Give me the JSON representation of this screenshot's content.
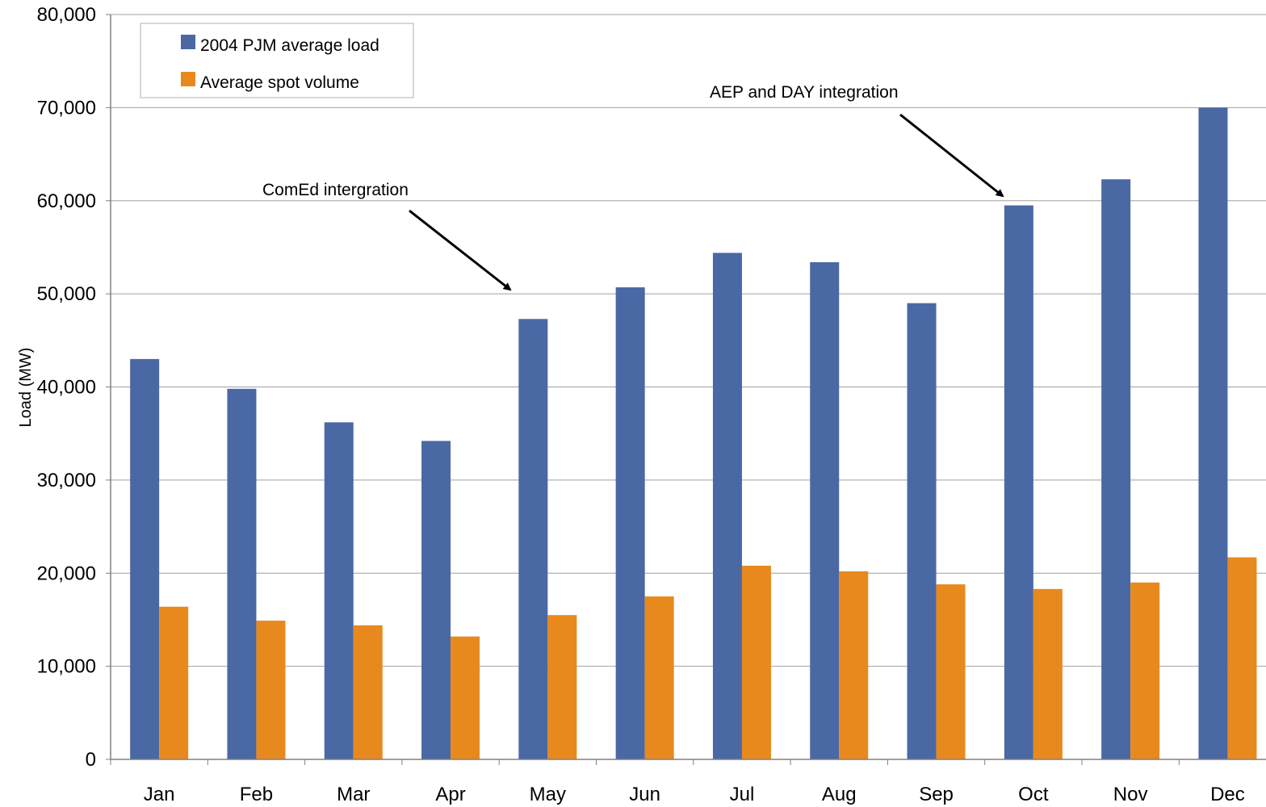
{
  "chart_data": {
    "type": "bar",
    "title": "",
    "xlabel": "",
    "ylabel": "Load (MW)",
    "ylim": [
      0,
      80000
    ],
    "yticks": [
      0,
      10000,
      20000,
      30000,
      40000,
      50000,
      60000,
      70000,
      80000
    ],
    "ytick_labels": [
      "0",
      "10,000",
      "20,000",
      "30,000",
      "40,000",
      "50,000",
      "60,000",
      "70,000",
      "80,000"
    ],
    "categories": [
      "Jan",
      "Feb",
      "Mar",
      "Apr",
      "May",
      "Jun",
      "Jul",
      "Aug",
      "Sep",
      "Oct",
      "Nov",
      "Dec"
    ],
    "series": [
      {
        "name": "2004 PJM average load",
        "color": "#4a68a4",
        "values": [
          43000,
          39800,
          36200,
          34200,
          47300,
          50700,
          54400,
          53400,
          49000,
          59500,
          62300,
          70000
        ]
      },
      {
        "name": "Average spot volume",
        "color": "#e8891e",
        "values": [
          16400,
          14900,
          14400,
          13200,
          15500,
          17500,
          20800,
          20200,
          18800,
          18300,
          19000,
          21700
        ]
      }
    ],
    "grid": true,
    "legend": {
      "position": "top-left",
      "entries": [
        "2004 PJM average load",
        "Average spot volume"
      ]
    },
    "annotations": [
      {
        "text": "ComEd intergration",
        "target_category": "May",
        "target_value": 48000
      },
      {
        "text": "AEP and DAY integration",
        "target_category": "Oct",
        "target_value": 60500
      }
    ]
  }
}
